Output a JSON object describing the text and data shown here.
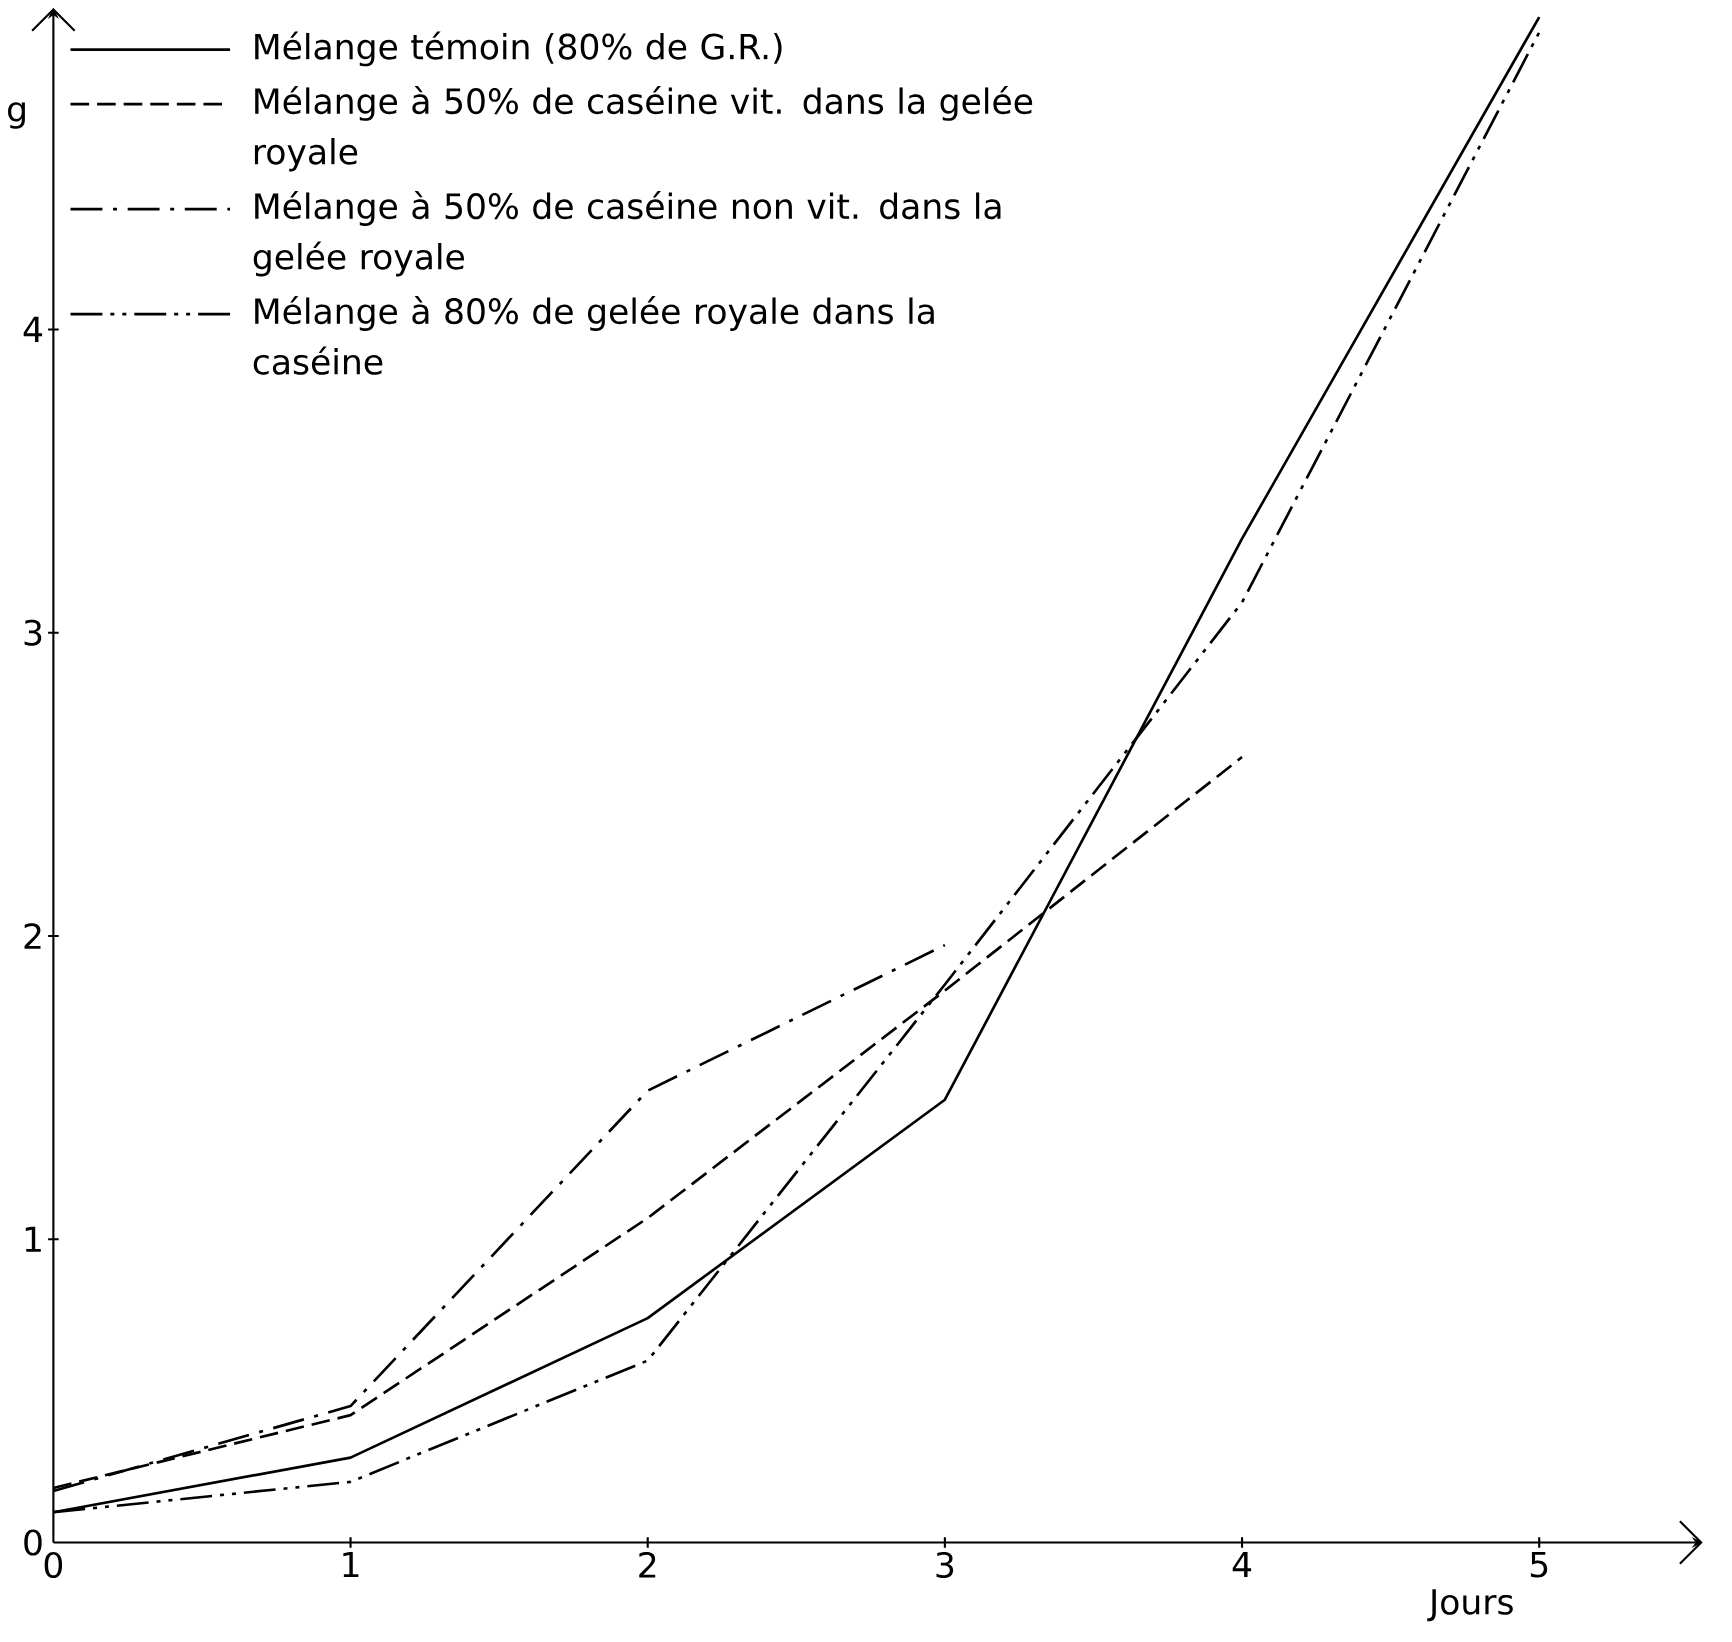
{
  "chart_data": {
    "type": "line",
    "xlabel": "Jours",
    "ylabel": "g",
    "x": [
      0,
      1,
      2,
      3,
      4,
      5
    ],
    "series": [
      {
        "name": "Mélange témoin (80% de G.R.)",
        "color": "#000000",
        "line_style": "solid",
        "values": [
          0.1,
          0.28,
          0.74,
          1.46,
          3.31,
          5.03
        ]
      },
      {
        "name": "Mélange à 50% de caséine vit. dans la gelée royale",
        "color": "#000000",
        "line_style": "dashed",
        "values": [
          0.18,
          0.42,
          1.07,
          1.82,
          2.59,
          null
        ]
      },
      {
        "name": "Mélange à 50% de caséine non vit. dans la gelée royale",
        "color": "#000000",
        "line_style": "dashdot",
        "values": [
          0.17,
          0.45,
          1.49,
          1.97,
          null,
          null
        ]
      },
      {
        "name": "Mélange à 80% de gelée royale dans la caséine",
        "color": "#000000",
        "line_style": "dashdotdot",
        "values": [
          0.1,
          0.2,
          0.6,
          1.84,
          3.1,
          4.98
        ]
      }
    ],
    "xlim": [
      0,
      5.55
    ],
    "ylim": [
      0,
      5.06
    ],
    "xticks": [
      0,
      1,
      2,
      3,
      4,
      5
    ],
    "yticks": [
      0,
      1,
      2,
      3,
      4
    ],
    "grid": false,
    "legend": "top left",
    "marker": "none"
  }
}
